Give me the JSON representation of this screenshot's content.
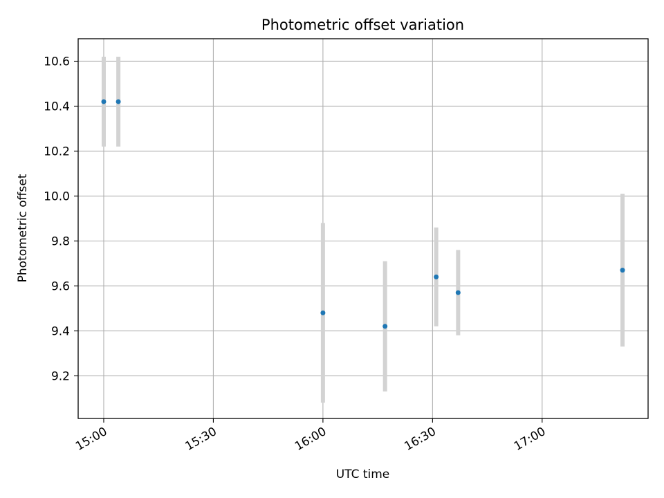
{
  "chart_data": {
    "type": "scatter",
    "title": "Photometric offset variation",
    "xlabel": "UTC time",
    "ylabel": "Photometric offset",
    "x_ticks": [
      "15:00",
      "15:30",
      "16:00",
      "16:30",
      "17:00"
    ],
    "y_ticks": [
      "9.2",
      "9.4",
      "9.6",
      "9.8",
      "10.0",
      "10.2",
      "10.4",
      "10.6"
    ],
    "xlim": [
      "14:53",
      "17:29"
    ],
    "ylim": [
      9.01,
      10.7
    ],
    "grid": true,
    "colors": {
      "point": "#1f77b4",
      "errorbar": "#d3d3d3",
      "grid": "#b0b0b0"
    },
    "points": [
      {
        "x": "15:00",
        "y": 10.42,
        "err": 0.2
      },
      {
        "x": "15:04",
        "y": 10.42,
        "err": 0.2
      },
      {
        "x": "16:00",
        "y": 9.48,
        "err": 0.4
      },
      {
        "x": "16:17",
        "y": 9.42,
        "err": 0.29
      },
      {
        "x": "16:31",
        "y": 9.64,
        "err": 0.22
      },
      {
        "x": "16:37",
        "y": 9.57,
        "err": 0.19
      },
      {
        "x": "17:22",
        "y": 9.67,
        "err": 0.34
      }
    ]
  }
}
